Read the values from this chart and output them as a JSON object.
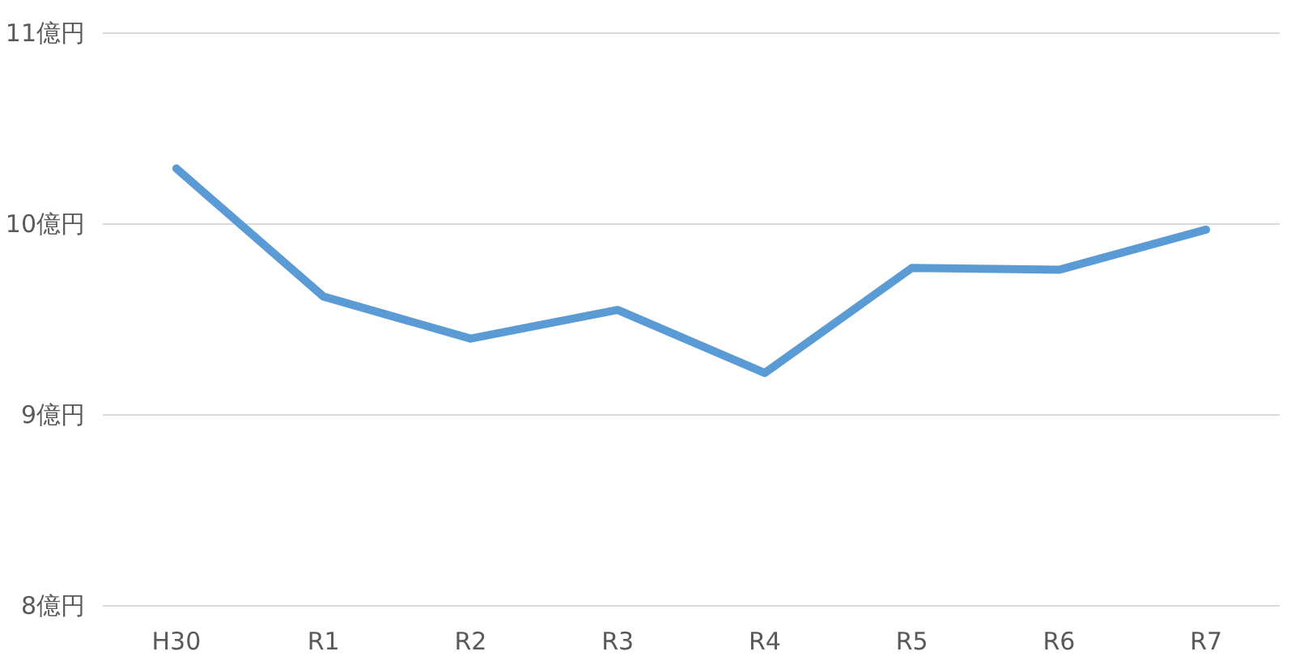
{
  "chart_data": {
    "type": "line",
    "categories": [
      "H30",
      "R1",
      "R2",
      "R3",
      "R4",
      "R5",
      "R6",
      "R7"
    ],
    "series": [
      {
        "color": "#5b9bd5",
        "values": [
          10.29,
          9.62,
          9.4,
          9.55,
          9.22,
          9.77,
          9.76,
          9.97
        ]
      }
    ],
    "ylim": [
      8,
      11
    ],
    "yticks": [
      {
        "value": 8,
        "label": "8億円"
      },
      {
        "value": 9,
        "label": "9億円"
      },
      {
        "value": 10,
        "label": "10億円"
      },
      {
        "value": 11,
        "label": "11億円"
      }
    ],
    "grid": "y",
    "marker": "none",
    "line_style": "solid"
  }
}
